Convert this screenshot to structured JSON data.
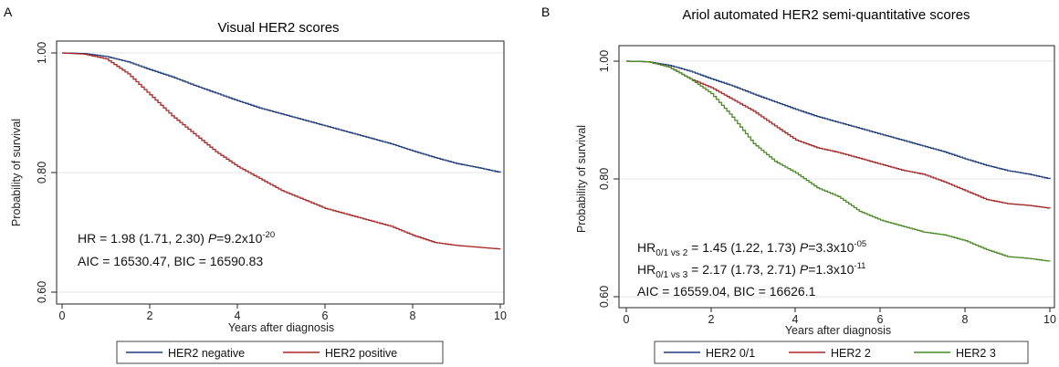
{
  "chart_data": [
    {
      "panel_label": "A",
      "type": "line",
      "title": "Visual HER2 scores",
      "xlabel": "Years after diagnosis",
      "ylabel": "Probability of survival",
      "xlim": [
        0,
        10
      ],
      "ylim": [
        0.6,
        1.0
      ],
      "x_ticks": [
        "0",
        "2",
        "4",
        "6",
        "8",
        "10"
      ],
      "y_ticks": [
        "0.60",
        "0.80",
        "1.00"
      ],
      "grid": "horizontal",
      "legend": "bottom",
      "series": [
        {
          "name": "HER2 negative",
          "color": "#1f3d7a",
          "points": [
            [
              0,
              1.0
            ],
            [
              0.5,
              0.999
            ],
            [
              1.0,
              0.994
            ],
            [
              1.5,
              0.985
            ],
            [
              2.0,
              0.972
            ],
            [
              2.5,
              0.96
            ],
            [
              3.0,
              0.946
            ],
            [
              3.5,
              0.933
            ],
            [
              4.0,
              0.92
            ],
            [
              4.5,
              0.908
            ],
            [
              5.0,
              0.898
            ],
            [
              5.5,
              0.888
            ],
            [
              6.0,
              0.878
            ],
            [
              6.5,
              0.868
            ],
            [
              7.0,
              0.858
            ],
            [
              7.5,
              0.848
            ],
            [
              8.0,
              0.836
            ],
            [
              8.5,
              0.825
            ],
            [
              9.0,
              0.815
            ],
            [
              9.5,
              0.808
            ],
            [
              10.0,
              0.8
            ]
          ]
        },
        {
          "name": "HER2 positive",
          "color": "#a82828",
          "points": [
            [
              0,
              1.0
            ],
            [
              0.5,
              0.998
            ],
            [
              1.0,
              0.99
            ],
            [
              1.5,
              0.965
            ],
            [
              2.0,
              0.93
            ],
            [
              2.5,
              0.895
            ],
            [
              3.0,
              0.865
            ],
            [
              3.5,
              0.835
            ],
            [
              4.0,
              0.81
            ],
            [
              4.5,
              0.79
            ],
            [
              5.0,
              0.77
            ],
            [
              5.5,
              0.755
            ],
            [
              6.0,
              0.74
            ],
            [
              6.5,
              0.73
            ],
            [
              7.0,
              0.72
            ],
            [
              7.5,
              0.71
            ],
            [
              8.0,
              0.695
            ],
            [
              8.5,
              0.683
            ],
            [
              9.0,
              0.678
            ],
            [
              9.5,
              0.675
            ],
            [
              10.0,
              0.672
            ]
          ]
        }
      ],
      "annotations": {
        "hr_prefix": "HR = 1.98 (1.71, 2.30)  ",
        "p_label": "P",
        "hr_p_value": "=9.2x10",
        "hr_p_exp": "-20",
        "aic_bic": "AIC = 16530.47, BIC = 16590.83"
      }
    },
    {
      "panel_label": "B",
      "type": "line",
      "title": "Ariol automated HER2 semi-quantitative scores",
      "xlabel": "Years after diagnosis",
      "ylabel": "Probability of survival",
      "xlim": [
        0,
        10
      ],
      "ylim": [
        0.6,
        1.0
      ],
      "x_ticks": [
        "0",
        "2",
        "4",
        "6",
        "8",
        "10"
      ],
      "y_ticks": [
        "0.60",
        "0.80",
        "1.00"
      ],
      "grid": "horizontal",
      "legend": "bottom",
      "series": [
        {
          "name": "HER2 0/1",
          "color": "#1f3d7a",
          "points": [
            [
              0,
              1.0
            ],
            [
              0.5,
              0.999
            ],
            [
              1.0,
              0.993
            ],
            [
              1.5,
              0.983
            ],
            [
              2.0,
              0.97
            ],
            [
              2.5,
              0.958
            ],
            [
              3.0,
              0.944
            ],
            [
              3.5,
              0.931
            ],
            [
              4.0,
              0.918
            ],
            [
              4.5,
              0.906
            ],
            [
              5.0,
              0.896
            ],
            [
              5.5,
              0.886
            ],
            [
              6.0,
              0.876
            ],
            [
              6.5,
              0.866
            ],
            [
              7.0,
              0.856
            ],
            [
              7.5,
              0.846
            ],
            [
              8.0,
              0.834
            ],
            [
              8.5,
              0.823
            ],
            [
              9.0,
              0.814
            ],
            [
              9.5,
              0.808
            ],
            [
              10.0,
              0.8
            ]
          ]
        },
        {
          "name": "HER2 2",
          "color": "#a82828",
          "points": [
            [
              0,
              1.0
            ],
            [
              0.5,
              0.999
            ],
            [
              1.0,
              0.99
            ],
            [
              1.5,
              0.97
            ],
            [
              2.0,
              0.955
            ],
            [
              2.5,
              0.935
            ],
            [
              3.0,
              0.915
            ],
            [
              3.5,
              0.89
            ],
            [
              4.0,
              0.866
            ],
            [
              4.5,
              0.853
            ],
            [
              5.0,
              0.845
            ],
            [
              5.5,
              0.835
            ],
            [
              6.0,
              0.825
            ],
            [
              6.5,
              0.815
            ],
            [
              7.0,
              0.808
            ],
            [
              7.5,
              0.795
            ],
            [
              8.0,
              0.78
            ],
            [
              8.5,
              0.765
            ],
            [
              9.0,
              0.758
            ],
            [
              9.5,
              0.755
            ],
            [
              10.0,
              0.75
            ]
          ]
        },
        {
          "name": "HER2 3",
          "color": "#4d8a2a",
          "points": [
            [
              0,
              1.0
            ],
            [
              0.5,
              0.999
            ],
            [
              1.0,
              0.99
            ],
            [
              1.5,
              0.97
            ],
            [
              2.0,
              0.945
            ],
            [
              2.5,
              0.905
            ],
            [
              3.0,
              0.86
            ],
            [
              3.5,
              0.83
            ],
            [
              4.0,
              0.81
            ],
            [
              4.5,
              0.785
            ],
            [
              5.0,
              0.77
            ],
            [
              5.5,
              0.745
            ],
            [
              6.0,
              0.73
            ],
            [
              6.5,
              0.72
            ],
            [
              7.0,
              0.71
            ],
            [
              7.5,
              0.705
            ],
            [
              8.0,
              0.695
            ],
            [
              8.5,
              0.68
            ],
            [
              9.0,
              0.668
            ],
            [
              9.5,
              0.665
            ],
            [
              10.0,
              0.66
            ]
          ]
        }
      ],
      "annotations": {
        "hr1_label": "HR",
        "hr1_sub": "0/1 vs 2",
        "hr1_value": " =  1.45 (1.22, 1.73)  ",
        "hr1_p_label": "P",
        "hr1_p_value": "=3.3x10",
        "hr1_p_exp": "-05",
        "hr2_label": "HR",
        "hr2_sub": "0/1 vs 3",
        "hr2_value": " =  2.17 (1.73, 2.71)  ",
        "hr2_p_label": "P",
        "hr2_p_value": "=1.3x10",
        "hr2_p_exp": "-11",
        "aic_bic": "AIC = 16559.04, BIC = 16626.1"
      }
    }
  ]
}
